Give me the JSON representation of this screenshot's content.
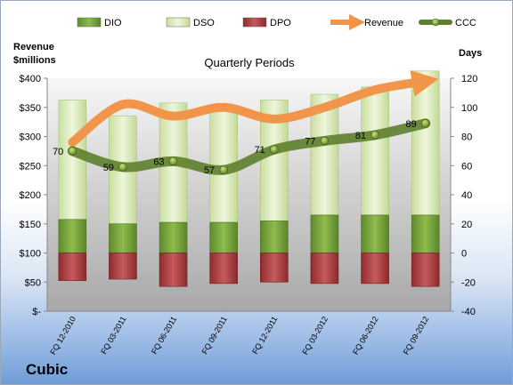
{
  "chart_data": {
    "type": "bar",
    "title": "Quarterly Periods",
    "company": "Cubic",
    "left_axis_label": [
      "Revenue",
      "$millions"
    ],
    "right_axis_label": "Days",
    "left_ticks": [
      "$-",
      "$50",
      "$100",
      "$150",
      "$200",
      "$250",
      "$300",
      "$350",
      "$400"
    ],
    "right_ticks": [
      "-40",
      "-20",
      "0",
      "20",
      "40",
      "60",
      "80",
      "100",
      "120"
    ],
    "left_ylim": [
      0,
      400
    ],
    "right_ylim": [
      -40,
      120
    ],
    "categories": [
      "FQ 12-2010",
      "FQ 03-2011",
      "FQ 06-2011",
      "FQ 09-2011",
      "FQ 12-2011",
      "FQ 03-2012",
      "FQ 06-2012",
      "FQ 09-2012"
    ],
    "legend_position": "top",
    "grid": false,
    "series": [
      {
        "name": "DIO",
        "type": "stacked-bar",
        "color": "#6f9a3a",
        "values": [
          23,
          20,
          21,
          21,
          22,
          26,
          26,
          26
        ]
      },
      {
        "name": "DSO",
        "type": "stacked-bar",
        "color": "#dcebc2",
        "values": [
          82,
          74,
          82,
          78,
          83,
          83,
          88,
          99
        ]
      },
      {
        "name": "DPO",
        "type": "negative-bar",
        "color": "#a33b3d",
        "values": [
          -19,
          -18,
          -23,
          -21,
          -20,
          -21,
          -21,
          -23
        ]
      },
      {
        "name": "Revenue",
        "type": "line",
        "axis": "left",
        "color": "#f0954a",
        "values": [
          290,
          355,
          335,
          350,
          330,
          350,
          380,
          395
        ]
      },
      {
        "name": "CCC",
        "type": "line",
        "axis": "right",
        "color": "#5e7f2c",
        "values": [
          70,
          59,
          63,
          57,
          71,
          77,
          81,
          89
        ]
      }
    ]
  }
}
